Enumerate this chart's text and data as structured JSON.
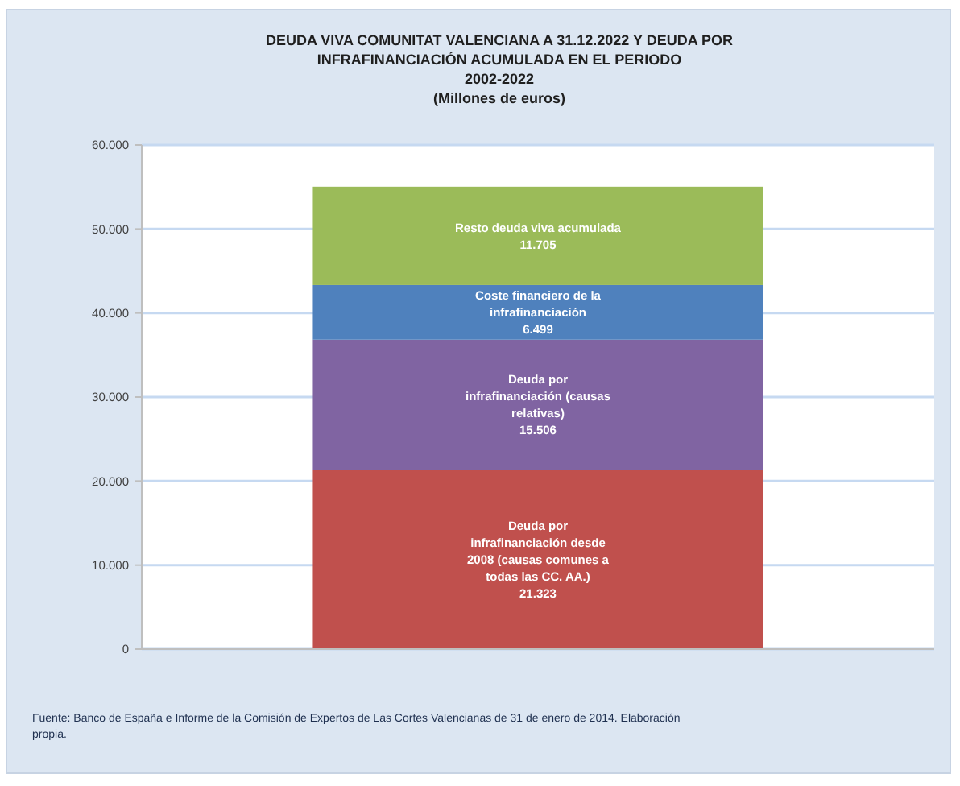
{
  "chart_data": {
    "type": "bar",
    "stacked": true,
    "title": "DEUDA VIVA COMUNITAT VALENCIANA A 31.12.2022 Y DEUDA POR\nINFRAFINANCIACIÓN ACUMULADA EN EL PERIODO",
    "subtitle": "2002-2022\n(Millones de euros)",
    "categories": [
      null
    ],
    "series": [
      {
        "name": "Deuda por infrafinanciación desde 2008 (causas comunes a todas las CC. AA.)",
        "color": "#c0504d",
        "values": [
          21323
        ],
        "value_labels": [
          "21.323"
        ]
      },
      {
        "name": "Deuda por infrafinanciación (causas relativas)",
        "color": "#8064a2",
        "values": [
          15506
        ],
        "value_labels": [
          "15.506"
        ]
      },
      {
        "name": "Coste financiero de la infrafinanciación",
        "color": "#4f81bd",
        "values": [
          6499
        ],
        "value_labels": [
          "6.499"
        ]
      },
      {
        "name": "Resto deuda viva acumulada",
        "color": "#9bbb59",
        "values": [
          11705
        ],
        "value_labels": [
          "11.705"
        ]
      }
    ],
    "ylim": [
      0,
      60000
    ],
    "yticks": [
      {
        "value": 0,
        "label": "0"
      },
      {
        "value": 10000,
        "label": "10.000"
      },
      {
        "value": 20000,
        "label": "20.000"
      },
      {
        "value": 30000,
        "label": "30.000"
      },
      {
        "value": 40000,
        "label": "40.000"
      },
      {
        "value": 50000,
        "label": "50.000"
      },
      {
        "value": 60000,
        "label": "60.000"
      }
    ],
    "grid": "y",
    "annotations": [
      "Fuente: Banco de España e Informe de la Comisión de Expertos de Las Cortes Valencianas de 31 de enero de 2014. Elaboración propia."
    ]
  }
}
